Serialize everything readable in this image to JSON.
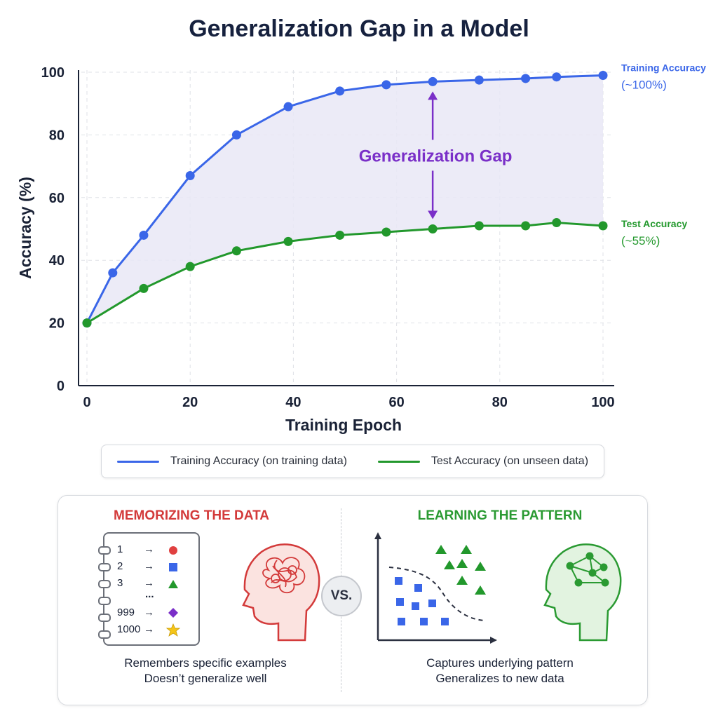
{
  "colors": {
    "train": "#3a66e8",
    "test": "#22982c",
    "gap": "#7a2fc8",
    "memorize": "#d33a3a",
    "learn": "#2a9a32",
    "fill": "#e9e8f6"
  },
  "chart_data": {
    "type": "line",
    "title": "Generalization Gap in a Model",
    "xlabel": "Training Epoch",
    "ylabel": "Accuracy (%)",
    "xlim": [
      0,
      100
    ],
    "ylim": [
      0,
      100
    ],
    "xticks": [
      0,
      20,
      40,
      60,
      80,
      100
    ],
    "yticks": [
      0,
      20,
      40,
      60,
      80,
      100
    ],
    "grid": true,
    "series": [
      {
        "name": "Training Accuracy",
        "x": [
          0,
          5,
          11,
          20,
          29,
          39,
          49,
          58,
          67,
          76,
          85,
          91,
          100
        ],
        "values": [
          20,
          36,
          48,
          67,
          80,
          89,
          94,
          96,
          97,
          97.5,
          98,
          98.5,
          99
        ]
      },
      {
        "name": "Test Accuracy",
        "x": [
          0,
          11,
          20,
          29,
          39,
          49,
          58,
          67,
          76,
          85,
          91,
          100
        ],
        "values": [
          20,
          31,
          38,
          43,
          46,
          48,
          49,
          50,
          51,
          51,
          52,
          51
        ]
      }
    ],
    "end_labels": [
      {
        "name": "Training Accuracy",
        "sub": "(~100%)"
      },
      {
        "name": "Test Accuracy",
        "sub": "(~55%)"
      }
    ],
    "annotation": {
      "text": "Generalization Gap",
      "x": 67,
      "from": 97,
      "to": 50
    }
  },
  "legend": {
    "train_label": "Training Accuracy (on training data)",
    "test_label": "Test Accuracy (on unseen data)"
  },
  "compare": {
    "left_title": "MEMORIZING THE DATA",
    "left_caption_1": "Remembers specific examples",
    "left_caption_2": "Doesn’t generalize well",
    "right_title": "LEARNING THE PATTERN",
    "right_caption_1": "Captures underlying pattern",
    "right_caption_2": "Generalizes to new data",
    "vs": "VS.",
    "notebook": {
      "rows": [
        "1",
        "2",
        "3",
        "999",
        "1000"
      ],
      "arrow": "→",
      "ellipsis": "..."
    },
    "icons": [
      "notebook-icon",
      "tangled-brain-head-icon",
      "scatter-plot-icon",
      "network-brain-head-icon"
    ]
  }
}
